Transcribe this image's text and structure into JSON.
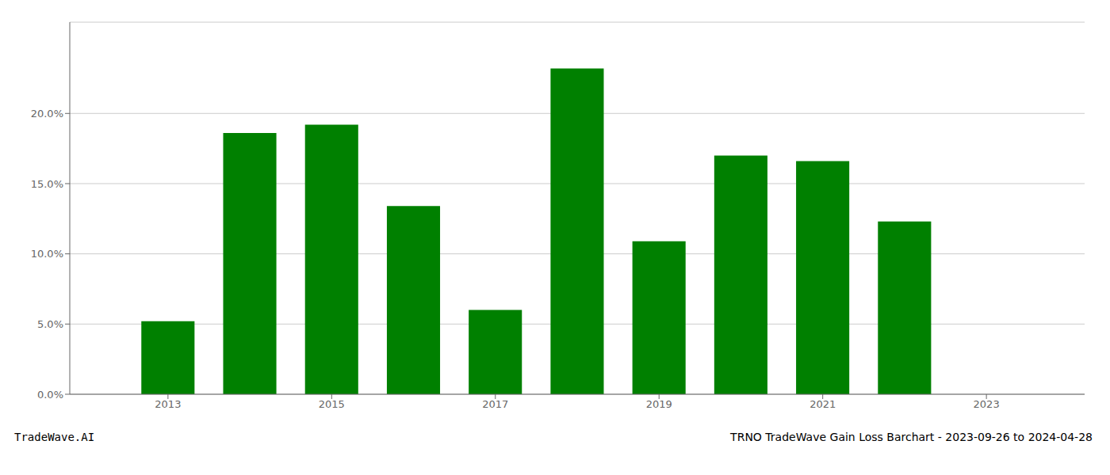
{
  "chart_data": {
    "type": "bar",
    "title": "TRNO TradeWave Gain Loss Barchart - 2023-09-26 to 2024-04-28",
    "annotations": [
      "TradeWave.AI"
    ],
    "x": [
      2013,
      2014,
      2015,
      2016,
      2017,
      2018,
      2019,
      2020,
      2021,
      2022
    ],
    "values": [
      0.052,
      0.186,
      0.192,
      0.134,
      0.06,
      0.232,
      0.109,
      0.17,
      0.166,
      0.123
    ],
    "color": "#008000",
    "xlim": [
      2011.8,
      2024.2
    ],
    "xticks": [
      2013,
      2015,
      2017,
      2019,
      2021,
      2023
    ],
    "ylim": [
      0,
      0.265
    ],
    "yticks": [
      {
        "value": 0.0,
        "label": "0.0%"
      },
      {
        "value": 0.05,
        "label": "5.0%"
      },
      {
        "value": 0.1,
        "label": "10.0%"
      },
      {
        "value": 0.15,
        "label": "15.0%"
      },
      {
        "value": 0.2,
        "label": "20.0%"
      }
    ],
    "grid": true
  }
}
